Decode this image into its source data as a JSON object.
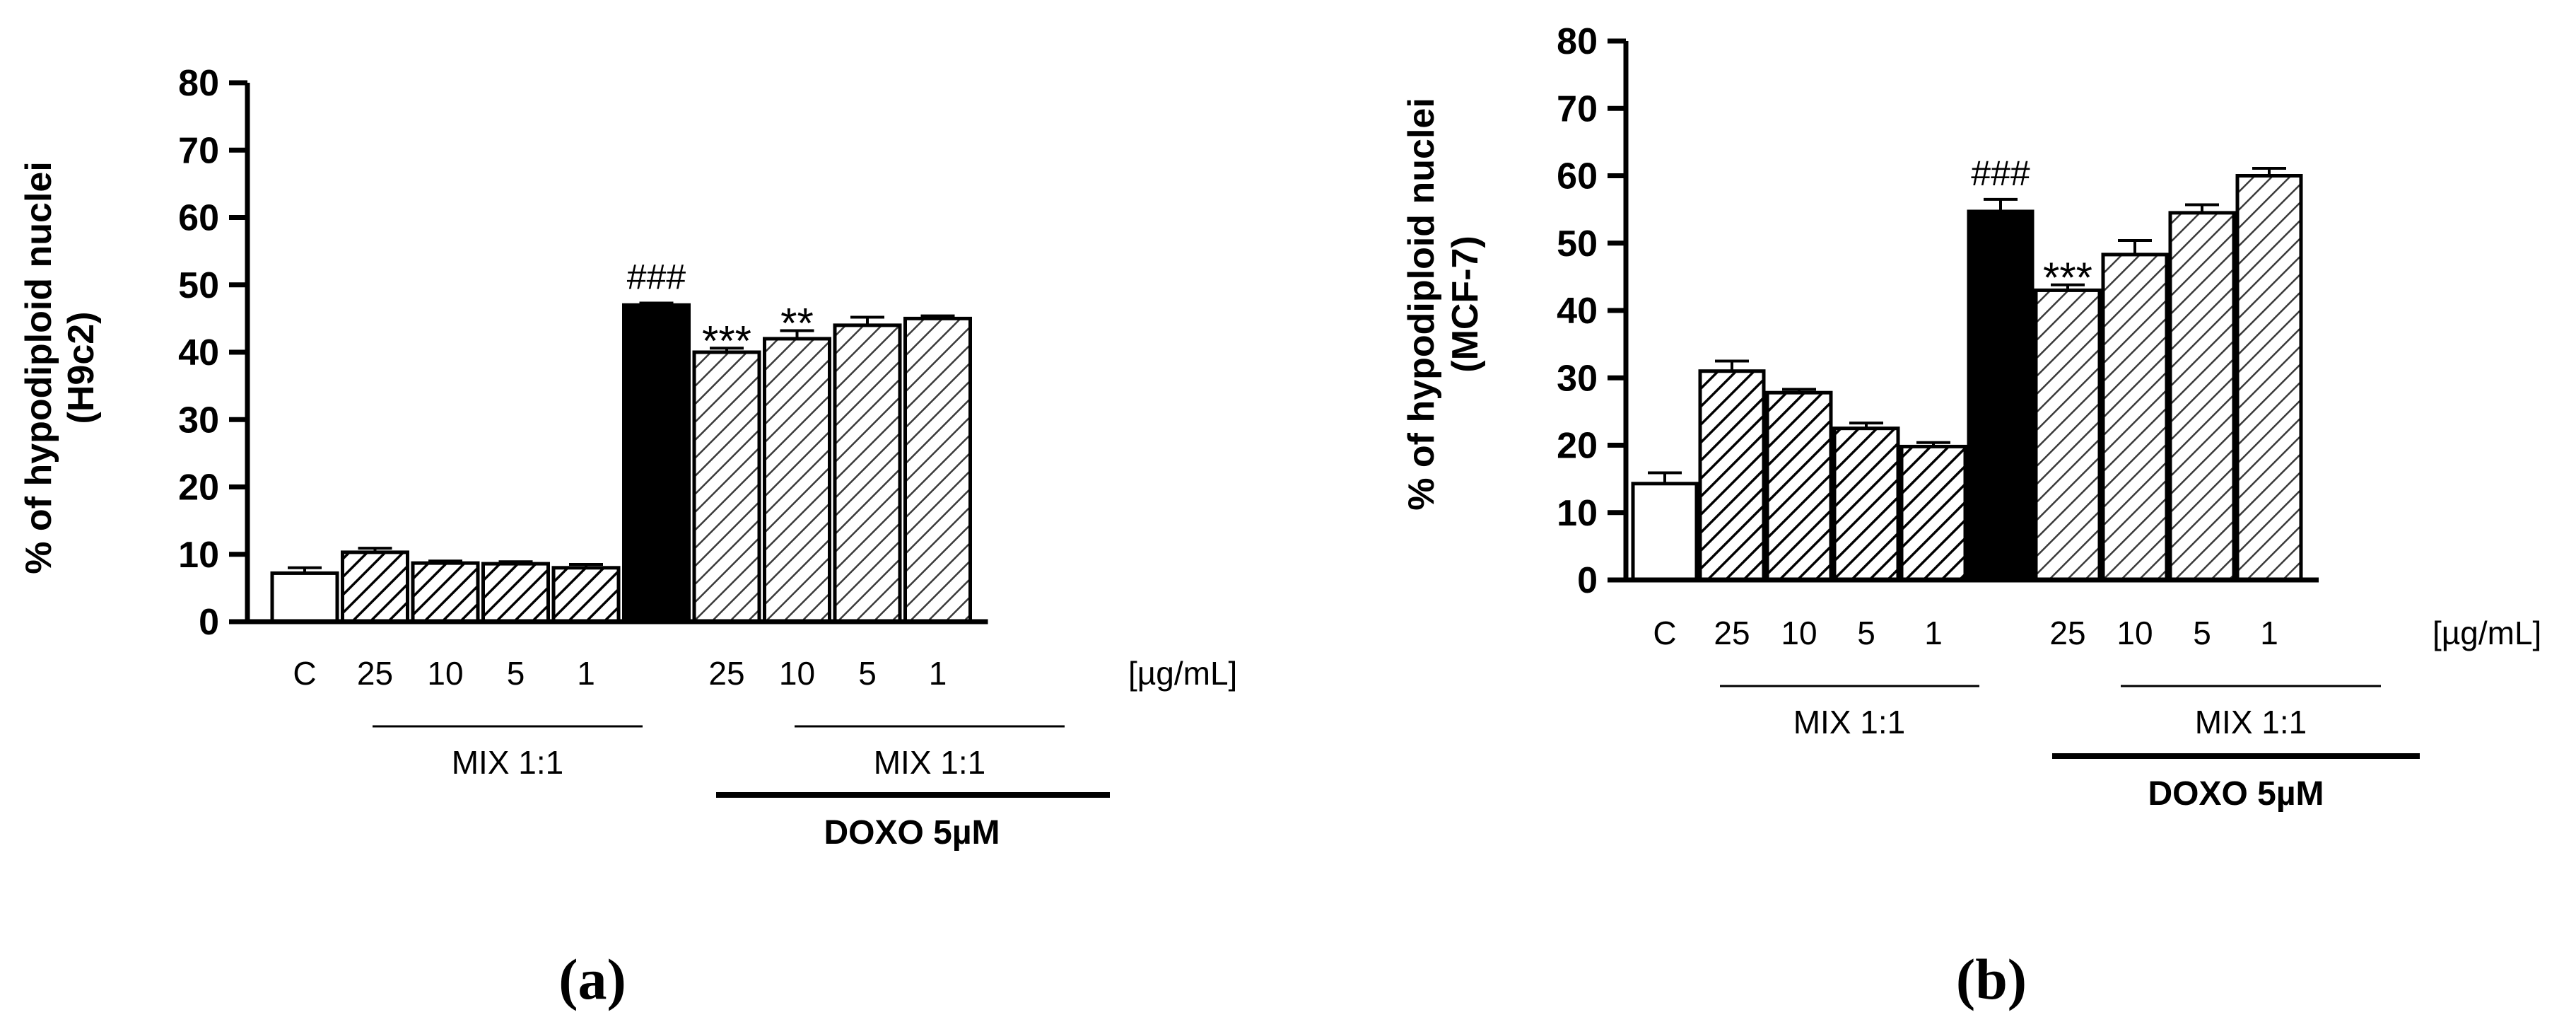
{
  "chart_data": [
    {
      "type": "bar",
      "panel_label": "(a)",
      "ylabel_line1": "% of hypodiploid nuclei",
      "ylabel_line2": "(H9c2)",
      "ylim": [
        0,
        80
      ],
      "yticks": [
        "0",
        "10",
        "20",
        "30",
        "40",
        "50",
        "60",
        "70",
        "80"
      ],
      "grid": false,
      "unit_label": "[µg/mL]",
      "group_label_mix_a": "MIX 1:1",
      "group_label_mix_b": "MIX 1:1",
      "group_label_doxo": "DOXO 5µM",
      "categories": [
        "C",
        "25",
        "10",
        "5",
        "1",
        "",
        "25",
        "10",
        "5",
        "1"
      ],
      "values": [
        7.2,
        10.3,
        8.7,
        8.6,
        8.0,
        47.0,
        40.0,
        42.0,
        44.0,
        45.0
      ],
      "errors": [
        0.8,
        0.6,
        0.3,
        0.3,
        0.5,
        0.3,
        0.6,
        1.2,
        1.2,
        0.4
      ],
      "fills": [
        "white",
        "hatch",
        "hatch",
        "hatch",
        "hatch",
        "black",
        "hatch-light",
        "hatch-light",
        "hatch-light",
        "hatch-light"
      ],
      "annotations": [
        "",
        "",
        "",
        "",
        "",
        "###",
        "***",
        "**",
        "",
        ""
      ]
    },
    {
      "type": "bar",
      "panel_label": "(b)",
      "ylabel_line1": "% of hypodiploid nuclei",
      "ylabel_line2": "(MCF-7)",
      "ylim": [
        0,
        80
      ],
      "yticks": [
        "0",
        "10",
        "20",
        "30",
        "40",
        "50",
        "60",
        "70",
        "80"
      ],
      "grid": false,
      "unit_label": "[µg/mL]",
      "group_label_mix_a": "MIX 1:1",
      "group_label_mix_b": "MIX 1:1",
      "group_label_doxo": "DOXO 5µM",
      "categories": [
        "C",
        "25",
        "10",
        "5",
        "1",
        "",
        "25",
        "10",
        "5",
        "1"
      ],
      "values": [
        14.3,
        31.0,
        27.8,
        22.5,
        19.8,
        54.7,
        43.0,
        48.3,
        54.5,
        60.0
      ],
      "errors": [
        1.6,
        1.5,
        0.5,
        0.8,
        0.6,
        1.8,
        0.8,
        2.1,
        1.2,
        1.1
      ],
      "fills": [
        "white",
        "hatch",
        "hatch",
        "hatch",
        "hatch",
        "black",
        "hatch-light",
        "hatch-light",
        "hatch-light",
        "hatch-light"
      ],
      "annotations": [
        "",
        "",
        "",
        "",
        "",
        "###",
        "***",
        "",
        "",
        ""
      ]
    }
  ]
}
